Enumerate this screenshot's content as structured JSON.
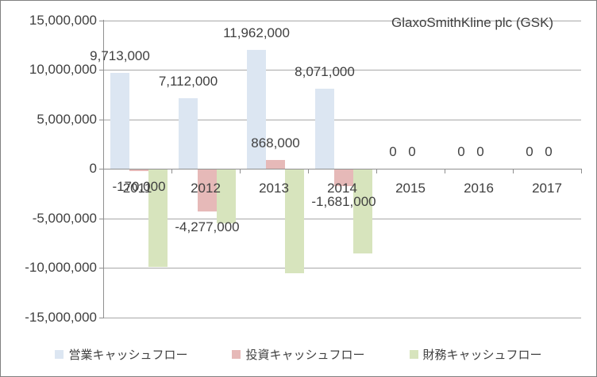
{
  "chart_data": {
    "type": "bar",
    "title": "GlaxoSmithKline plc (GSK)",
    "categories": [
      "2011",
      "2012",
      "2013",
      "2014",
      "2015",
      "2016",
      "2017"
    ],
    "series": [
      {
        "name": "営業キャッシュフロー",
        "color": "#dce6f2",
        "values": [
          9713000,
          7112000,
          11962000,
          8071000,
          0,
          0,
          0
        ],
        "data_labels": [
          "9,713,000",
          "7,112,000",
          "11,962,000",
          "8,071,000",
          "0",
          "0",
          "0"
        ]
      },
      {
        "name": "投資キャッシュフロー",
        "color": "#e6b9b8",
        "values": [
          -170000,
          -4277000,
          868000,
          -1681000,
          0,
          0,
          0
        ],
        "data_labels": [
          "-170,000",
          "-4,277,000",
          "868,000",
          "-1,681,000",
          "0",
          "0",
          "0"
        ]
      },
      {
        "name": "財務キャッシュフロー",
        "color": "#d7e4bd",
        "values": [
          -9800000,
          -5400000,
          -10500000,
          -8500000,
          0,
          0,
          0
        ],
        "data_labels": [
          null,
          null,
          null,
          null,
          null,
          null,
          null
        ],
        "values_estimated_from_bars": true
      }
    ],
    "ylim": [
      -15000000,
      15000000
    ],
    "ytick_interval": 5000000,
    "ytick_labels": [
      "15,000,000",
      "10,000,000",
      "5,000,000",
      "0",
      "-5,000,000",
      "-10,000,000",
      "-15,000,000"
    ],
    "grid": true,
    "legend_position": "bottom"
  },
  "colors": {
    "axis": "#8f8f8f",
    "gridline": "#a8a8a8",
    "text": "#404040",
    "background": "#ffffff",
    "border": "#808080"
  }
}
